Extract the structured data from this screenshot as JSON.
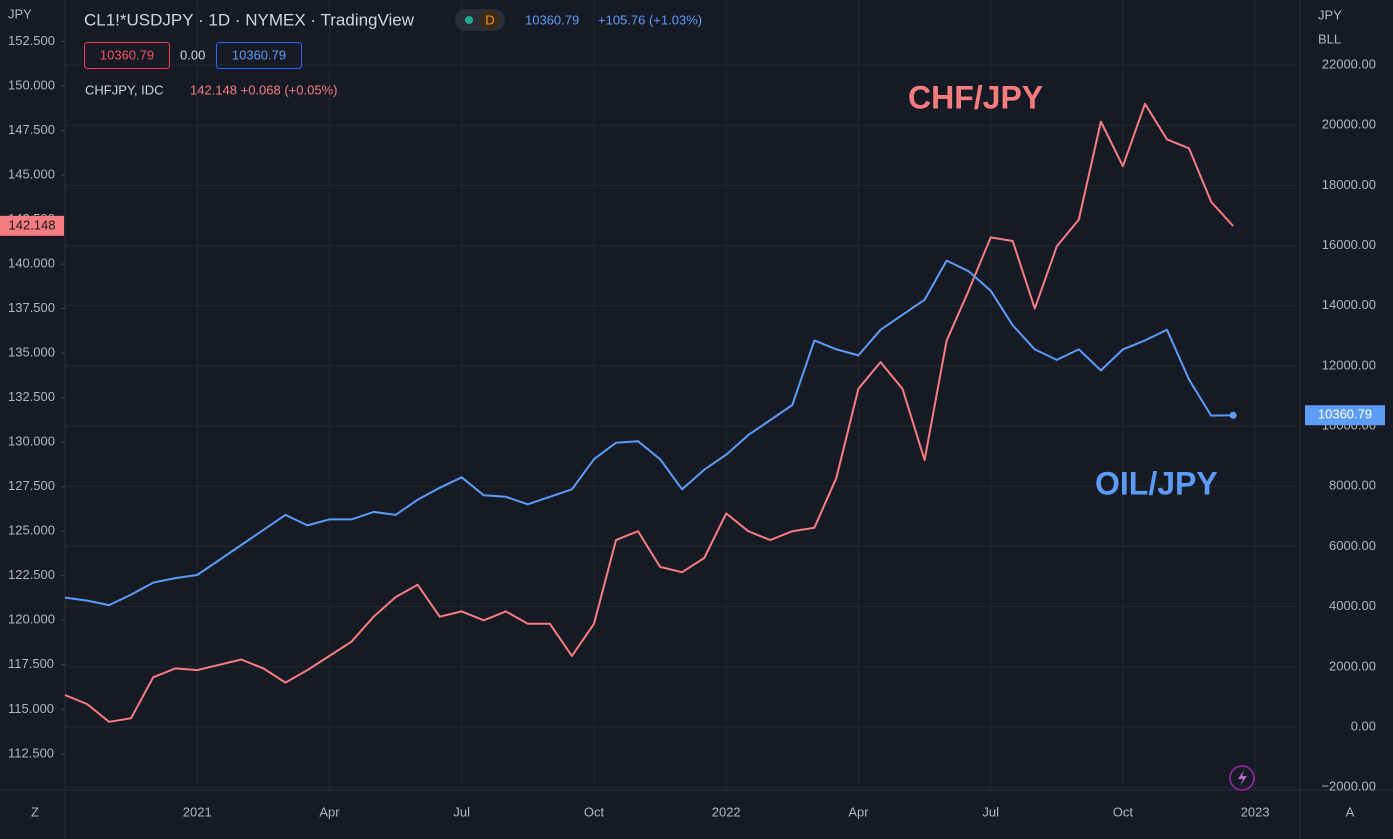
{
  "toolbar": {
    "symbol": "CL1!*USDJPY · 1D · NYMEX · TradingView",
    "badge": "D",
    "last": "10360.79",
    "change": "+105.76 (+1.03%)",
    "bid": "10360.79",
    "spread": "0.00",
    "ask": "10360.79",
    "overlay_symbol": "CHFJPY, IDC",
    "overlay_quote": "142.148 +0.068 (+0.05%)",
    "left_currency": "JPY",
    "right_currency": "JPY",
    "right_unit": "BLL",
    "left_corner": "Z",
    "right_corner": "A"
  },
  "chart_data": {
    "type": "line",
    "annotations": [
      {
        "text": "CHF/JPY",
        "color": "#f77c80"
      },
      {
        "text": "OIL/JPY",
        "color": "#5b9cf6"
      }
    ],
    "categories": [
      null,
      null,
      null,
      null,
      null,
      null,
      "2021",
      null,
      null,
      null,
      null,
      null,
      "Apr",
      null,
      null,
      null,
      null,
      null,
      "Jul",
      null,
      null,
      null,
      null,
      null,
      "Oct",
      null,
      null,
      null,
      null,
      null,
      "2022",
      null,
      null,
      null,
      null,
      null,
      "Apr",
      null,
      null,
      null,
      null,
      null,
      "Jul",
      null,
      null,
      null,
      null,
      null,
      "Oct",
      null,
      null,
      null,
      null,
      null,
      "2023"
    ],
    "series": [
      {
        "name": "CHFJPY",
        "color": "#f77c80",
        "last_label": "142.148",
        "values": [
          115.8,
          115.3,
          114.3,
          114.5,
          116.8,
          117.3,
          117.2,
          117.5,
          117.8,
          117.3,
          116.5,
          117.2,
          118.0,
          118.8,
          120.2,
          121.3,
          122.0,
          120.2,
          120.5,
          120.0,
          120.5,
          119.8,
          119.8,
          118.0,
          119.8,
          124.5,
          125.0,
          123.0,
          122.7,
          123.5,
          126.0,
          125.0,
          124.5,
          125.0,
          125.2,
          128.0,
          133.0,
          134.5,
          133.0,
          129.0,
          135.7,
          138.5,
          141.5,
          141.3,
          137.5,
          141.0,
          142.5,
          148.0,
          145.5,
          149.0,
          147.0,
          146.5,
          143.5,
          142.148,
          null
        ]
      },
      {
        "name": "CL1!*USDJPY",
        "color": "#5b9cf6",
        "axis": "y2",
        "last_label": "10360.79",
        "values": [
          4300,
          4200,
          4050,
          4400,
          4800,
          4950,
          5050,
          5550,
          6050,
          6550,
          7050,
          6700,
          6900,
          6900,
          7150,
          7050,
          7550,
          7950,
          8300,
          7700,
          7650,
          7400,
          7650,
          7900,
          8900,
          9450,
          9500,
          8900,
          7900,
          8550,
          9050,
          9700,
          10200,
          10700,
          12850,
          12550,
          12350,
          13200,
          13700,
          14200,
          15500,
          15150,
          14500,
          13350,
          12550,
          12200,
          12550,
          11850,
          12550,
          12850,
          13200,
          11550,
          10350,
          10360.79,
          null
        ]
      }
    ],
    "ylim": [
      110.47,
      154.83
    ],
    "yticks": [
      {
        "value": 112.5,
        "label": "112.500"
      },
      {
        "value": 115,
        "label": "115.000"
      },
      {
        "value": 117.5,
        "label": "117.500"
      },
      {
        "value": 120,
        "label": "120.000"
      },
      {
        "value": 122.5,
        "label": "122.500"
      },
      {
        "value": 125,
        "label": "125.000"
      },
      {
        "value": 127.5,
        "label": "127.500"
      },
      {
        "value": 130,
        "label": "130.000"
      },
      {
        "value": 132.5,
        "label": "132.500"
      },
      {
        "value": 135,
        "label": "135.000"
      },
      {
        "value": 137.5,
        "label": "137.500"
      },
      {
        "value": 140,
        "label": "140.000"
      },
      {
        "value": 142.5,
        "label": "142.500"
      },
      {
        "value": 145,
        "label": "145.000"
      },
      {
        "value": 147.5,
        "label": "147.500"
      },
      {
        "value": 150,
        "label": "150.000"
      },
      {
        "value": 152.5,
        "label": "152.500"
      }
    ],
    "y2lim": [
      -2094,
      24162
    ],
    "y2ticks": [
      {
        "value": -2000,
        "label": "−2000.00"
      },
      {
        "value": 0,
        "label": "0.00"
      },
      {
        "value": 2000,
        "label": "2000.00"
      },
      {
        "value": 4000,
        "label": "4000.00"
      },
      {
        "value": 6000,
        "label": "6000.00"
      },
      {
        "value": 8000,
        "label": "8000.00"
      },
      {
        "value": 10000,
        "label": "10000.00"
      },
      {
        "value": 12000,
        "label": "12000.00"
      },
      {
        "value": 14000,
        "label": "14000.00"
      },
      {
        "value": 16000,
        "label": "16000.00"
      },
      {
        "value": 18000,
        "label": "18000.00"
      },
      {
        "value": 20000,
        "label": "20000.00"
      },
      {
        "value": 22000,
        "label": "22000.00"
      }
    ],
    "grid": true
  }
}
